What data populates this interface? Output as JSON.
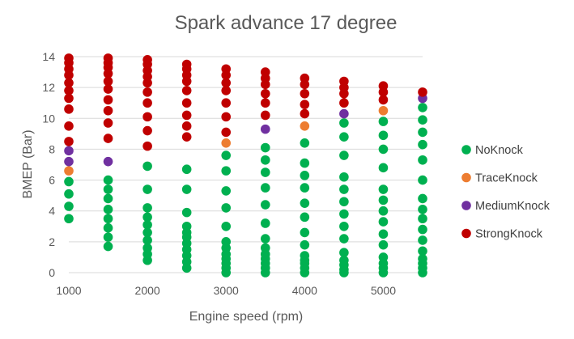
{
  "chart_data": {
    "type": "scatter",
    "title": "Spark advance 17 degree",
    "xlabel": "Engine speed (rpm)",
    "ylabel": "BMEP (Bar)",
    "xlim": [
      1000,
      5500
    ],
    "ylim": [
      0,
      14
    ],
    "xticks": [
      "1000",
      "2000",
      "3000",
      "4000",
      "5000"
    ],
    "yticks": [
      "0",
      "2",
      "4",
      "6",
      "8",
      "10",
      "12",
      "14"
    ],
    "grid": "horizontal",
    "legend_position": "right",
    "series": [
      {
        "name": "NoKnock",
        "color": "#00b050",
        "points": [
          [
            1000,
            3.5
          ],
          [
            1000,
            4.3
          ],
          [
            1000,
            5.1
          ],
          [
            1000,
            5.9
          ],
          [
            1500,
            1.7
          ],
          [
            1500,
            2.3
          ],
          [
            1500,
            2.9
          ],
          [
            1500,
            3.5
          ],
          [
            1500,
            4.1
          ],
          [
            1500,
            4.8
          ],
          [
            1500,
            5.4
          ],
          [
            1500,
            6.0
          ],
          [
            2000,
            0.8
          ],
          [
            2000,
            1.2
          ],
          [
            2000,
            1.6
          ],
          [
            2000,
            2.1
          ],
          [
            2000,
            2.6
          ],
          [
            2000,
            3.1
          ],
          [
            2000,
            3.6
          ],
          [
            2000,
            4.2
          ],
          [
            2000,
            5.4
          ],
          [
            2000,
            6.9
          ],
          [
            2500,
            0.3
          ],
          [
            2500,
            0.7
          ],
          [
            2500,
            1.1
          ],
          [
            2500,
            1.5
          ],
          [
            2500,
            1.9
          ],
          [
            2500,
            2.3
          ],
          [
            2500,
            2.6
          ],
          [
            2500,
            3.0
          ],
          [
            2500,
            3.9
          ],
          [
            2500,
            5.4
          ],
          [
            2500,
            6.7
          ],
          [
            3000,
            0.0
          ],
          [
            3000,
            0.3
          ],
          [
            3000,
            0.6
          ],
          [
            3000,
            0.9
          ],
          [
            3000,
            1.2
          ],
          [
            3000,
            1.6
          ],
          [
            3000,
            2.0
          ],
          [
            3000,
            3.0
          ],
          [
            3000,
            4.2
          ],
          [
            3000,
            5.3
          ],
          [
            3000,
            6.6
          ],
          [
            3000,
            7.6
          ],
          [
            3500,
            0.0
          ],
          [
            3500,
            0.3
          ],
          [
            3500,
            0.6
          ],
          [
            3500,
            0.9
          ],
          [
            3500,
            1.2
          ],
          [
            3500,
            1.6
          ],
          [
            3500,
            2.2
          ],
          [
            3500,
            3.2
          ],
          [
            3500,
            4.4
          ],
          [
            3500,
            5.5
          ],
          [
            3500,
            6.5
          ],
          [
            3500,
            7.3
          ],
          [
            3500,
            8.1
          ],
          [
            4000,
            0.0
          ],
          [
            4000,
            0.3
          ],
          [
            4000,
            0.6
          ],
          [
            4000,
            0.8
          ],
          [
            4000,
            1.1
          ],
          [
            4000,
            1.8
          ],
          [
            4000,
            2.6
          ],
          [
            4000,
            3.6
          ],
          [
            4000,
            4.5
          ],
          [
            4000,
            5.5
          ],
          [
            4000,
            6.3
          ],
          [
            4000,
            7.1
          ],
          [
            4000,
            8.4
          ],
          [
            4500,
            0.0
          ],
          [
            4500,
            0.2
          ],
          [
            4500,
            0.5
          ],
          [
            4500,
            0.8
          ],
          [
            4500,
            1.3
          ],
          [
            4500,
            2.2
          ],
          [
            4500,
            3.0
          ],
          [
            4500,
            3.8
          ],
          [
            4500,
            4.6
          ],
          [
            4500,
            5.4
          ],
          [
            4500,
            6.2
          ],
          [
            4500,
            7.6
          ],
          [
            4500,
            8.8
          ],
          [
            4500,
            9.7
          ],
          [
            5000,
            0.0
          ],
          [
            5000,
            0.3
          ],
          [
            5000,
            0.6
          ],
          [
            5000,
            1.0
          ],
          [
            5000,
            1.8
          ],
          [
            5000,
            2.5
          ],
          [
            5000,
            3.3
          ],
          [
            5000,
            4.0
          ],
          [
            5000,
            4.7
          ],
          [
            5000,
            5.4
          ],
          [
            5000,
            6.8
          ],
          [
            5000,
            8.0
          ],
          [
            5000,
            8.9
          ],
          [
            5000,
            9.8
          ],
          [
            5500,
            0.0
          ],
          [
            5500,
            0.3
          ],
          [
            5500,
            0.6
          ],
          [
            5500,
            0.9
          ],
          [
            5500,
            1.4
          ],
          [
            5500,
            2.1
          ],
          [
            5500,
            2.8
          ],
          [
            5500,
            3.5
          ],
          [
            5500,
            4.1
          ],
          [
            5500,
            4.8
          ],
          [
            5500,
            6.0
          ],
          [
            5500,
            7.3
          ],
          [
            5500,
            8.3
          ],
          [
            5500,
            9.1
          ],
          [
            5500,
            9.9
          ],
          [
            5500,
            10.7
          ]
        ]
      },
      {
        "name": "TraceKnock",
        "color": "#ed7d31",
        "points": [
          [
            1000,
            6.6
          ],
          [
            3000,
            8.4
          ],
          [
            4000,
            9.5
          ],
          [
            5000,
            10.5
          ]
        ]
      },
      {
        "name": "MediumKnock",
        "color": "#7030a0",
        "points": [
          [
            1000,
            7.2
          ],
          [
            1000,
            7.9
          ],
          [
            1500,
            7.2
          ],
          [
            3500,
            9.3
          ],
          [
            4500,
            10.3
          ],
          [
            5500,
            11.3
          ]
        ]
      },
      {
        "name": "StrongKnock",
        "color": "#c00000",
        "points": [
          [
            1000,
            8.5
          ],
          [
            1000,
            9.5
          ],
          [
            1000,
            10.6
          ],
          [
            1000,
            11.3
          ],
          [
            1000,
            11.8
          ],
          [
            1000,
            12.3
          ],
          [
            1000,
            12.8
          ],
          [
            1000,
            13.2
          ],
          [
            1000,
            13.6
          ],
          [
            1000,
            13.9
          ],
          [
            1500,
            8.7
          ],
          [
            1500,
            9.7
          ],
          [
            1500,
            10.5
          ],
          [
            1500,
            11.2
          ],
          [
            1500,
            11.9
          ],
          [
            1500,
            12.4
          ],
          [
            1500,
            12.9
          ],
          [
            1500,
            13.3
          ],
          [
            1500,
            13.6
          ],
          [
            1500,
            13.9
          ],
          [
            2000,
            8.2
          ],
          [
            2000,
            9.2
          ],
          [
            2000,
            10.1
          ],
          [
            2000,
            11.0
          ],
          [
            2000,
            11.7
          ],
          [
            2000,
            12.3
          ],
          [
            2000,
            12.7
          ],
          [
            2000,
            13.1
          ],
          [
            2000,
            13.5
          ],
          [
            2000,
            13.8
          ],
          [
            2500,
            8.8
          ],
          [
            2500,
            9.5
          ],
          [
            2500,
            10.2
          ],
          [
            2500,
            11.0
          ],
          [
            2500,
            11.8
          ],
          [
            2500,
            12.4
          ],
          [
            2500,
            12.8
          ],
          [
            2500,
            13.2
          ],
          [
            2500,
            13.5
          ],
          [
            3000,
            9.1
          ],
          [
            3000,
            10.1
          ],
          [
            3000,
            11.0
          ],
          [
            3000,
            11.8
          ],
          [
            3000,
            12.3
          ],
          [
            3000,
            12.8
          ],
          [
            3000,
            13.2
          ],
          [
            3500,
            10.2
          ],
          [
            3500,
            11.0
          ],
          [
            3500,
            11.6
          ],
          [
            3500,
            12.2
          ],
          [
            3500,
            12.6
          ],
          [
            3500,
            13.0
          ],
          [
            4000,
            10.3
          ],
          [
            4000,
            10.9
          ],
          [
            4000,
            11.6
          ],
          [
            4000,
            12.2
          ],
          [
            4000,
            12.6
          ],
          [
            4500,
            11.0
          ],
          [
            4500,
            11.6
          ],
          [
            4500,
            12.0
          ],
          [
            4500,
            12.4
          ],
          [
            5000,
            11.2
          ],
          [
            5000,
            11.7
          ],
          [
            5000,
            12.1
          ],
          [
            5500,
            11.7
          ]
        ]
      }
    ]
  }
}
